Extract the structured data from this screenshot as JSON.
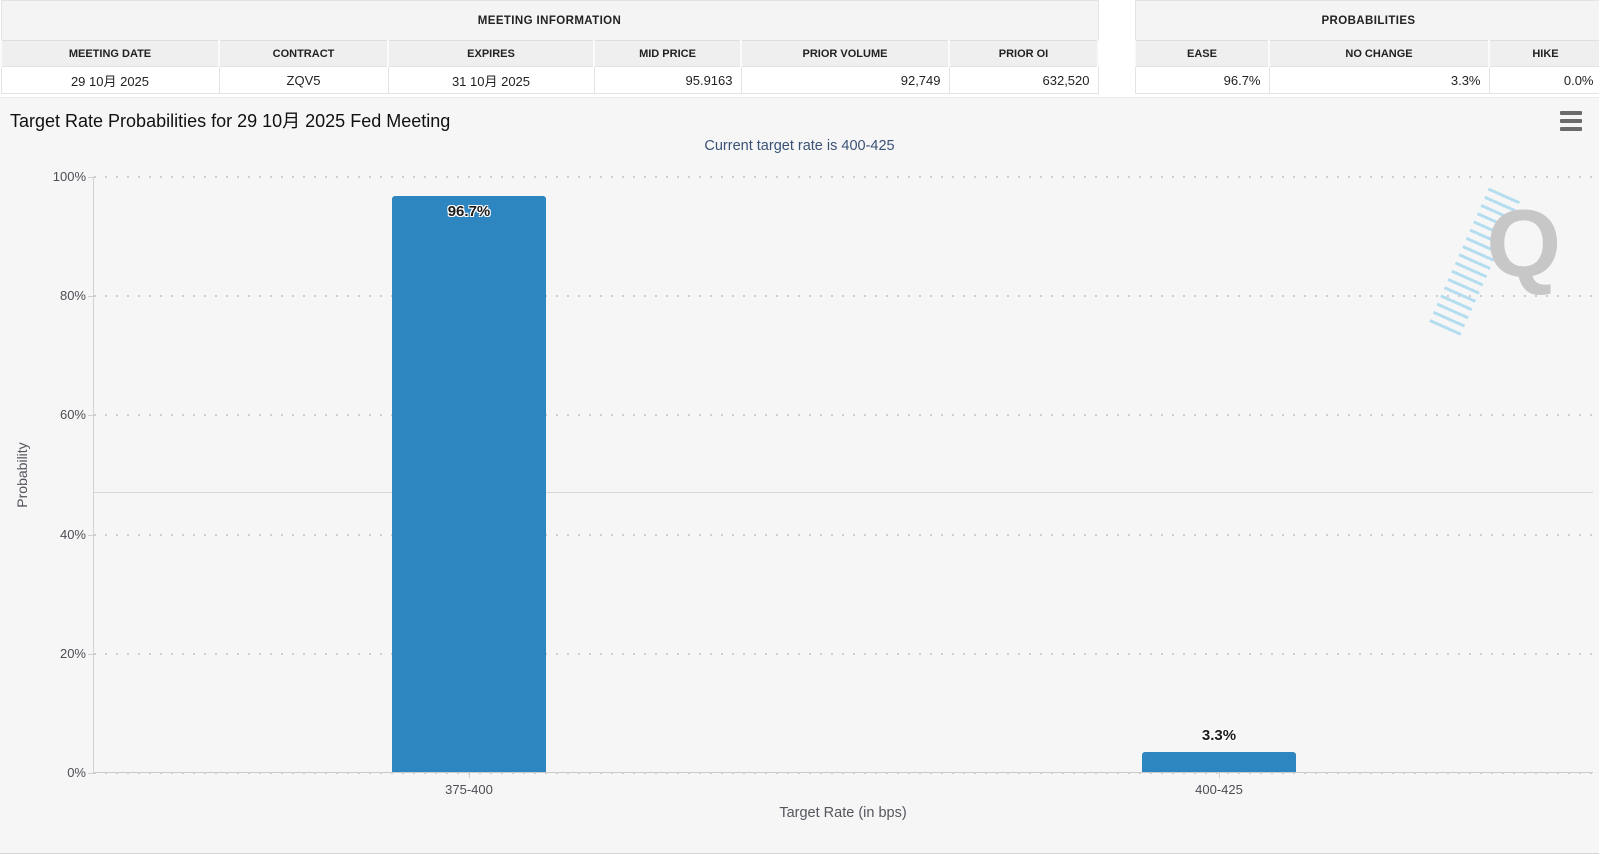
{
  "meeting_information": {
    "title": "MEETING INFORMATION",
    "columns": [
      "MEETING DATE",
      "CONTRACT",
      "EXPIRES",
      "MID PRICE",
      "PRIOR VOLUME",
      "PRIOR OI"
    ],
    "values": [
      "29 10月 2025",
      "ZQV5",
      "31 10月 2025",
      "95.9163",
      "92,749",
      "632,520"
    ]
  },
  "probabilities": {
    "title": "PROBABILITIES",
    "columns": [
      "EASE",
      "NO CHANGE",
      "HIKE"
    ],
    "values": [
      "96.7%",
      "3.3%",
      "0.0%"
    ]
  },
  "chart": {
    "title": "Target Rate Probabilities for 29 10月 2025 Fed Meeting",
    "subtitle": "Current target rate is 400-425",
    "watermark_letter": "Q"
  },
  "chart_data": {
    "type": "bar",
    "categories": [
      "375-400",
      "400-425"
    ],
    "values": [
      96.7,
      3.3
    ],
    "labels": [
      "96.7%",
      "3.3%"
    ],
    "title": "Target Rate Probabilities for 29 10月 2025 Fed Meeting",
    "subtitle": "Current target rate is 400-425",
    "xlabel": "Target Rate (in bps)",
    "ylabel": "Probability",
    "ylim": [
      0,
      100
    ],
    "yticks": [
      "0%",
      "20%",
      "40%",
      "60%",
      "80%",
      "100%"
    ],
    "bar_color": "#2e86c0",
    "reference_line_percent": 47.2,
    "grid": "dotted-horizontal",
    "legend": "none"
  }
}
